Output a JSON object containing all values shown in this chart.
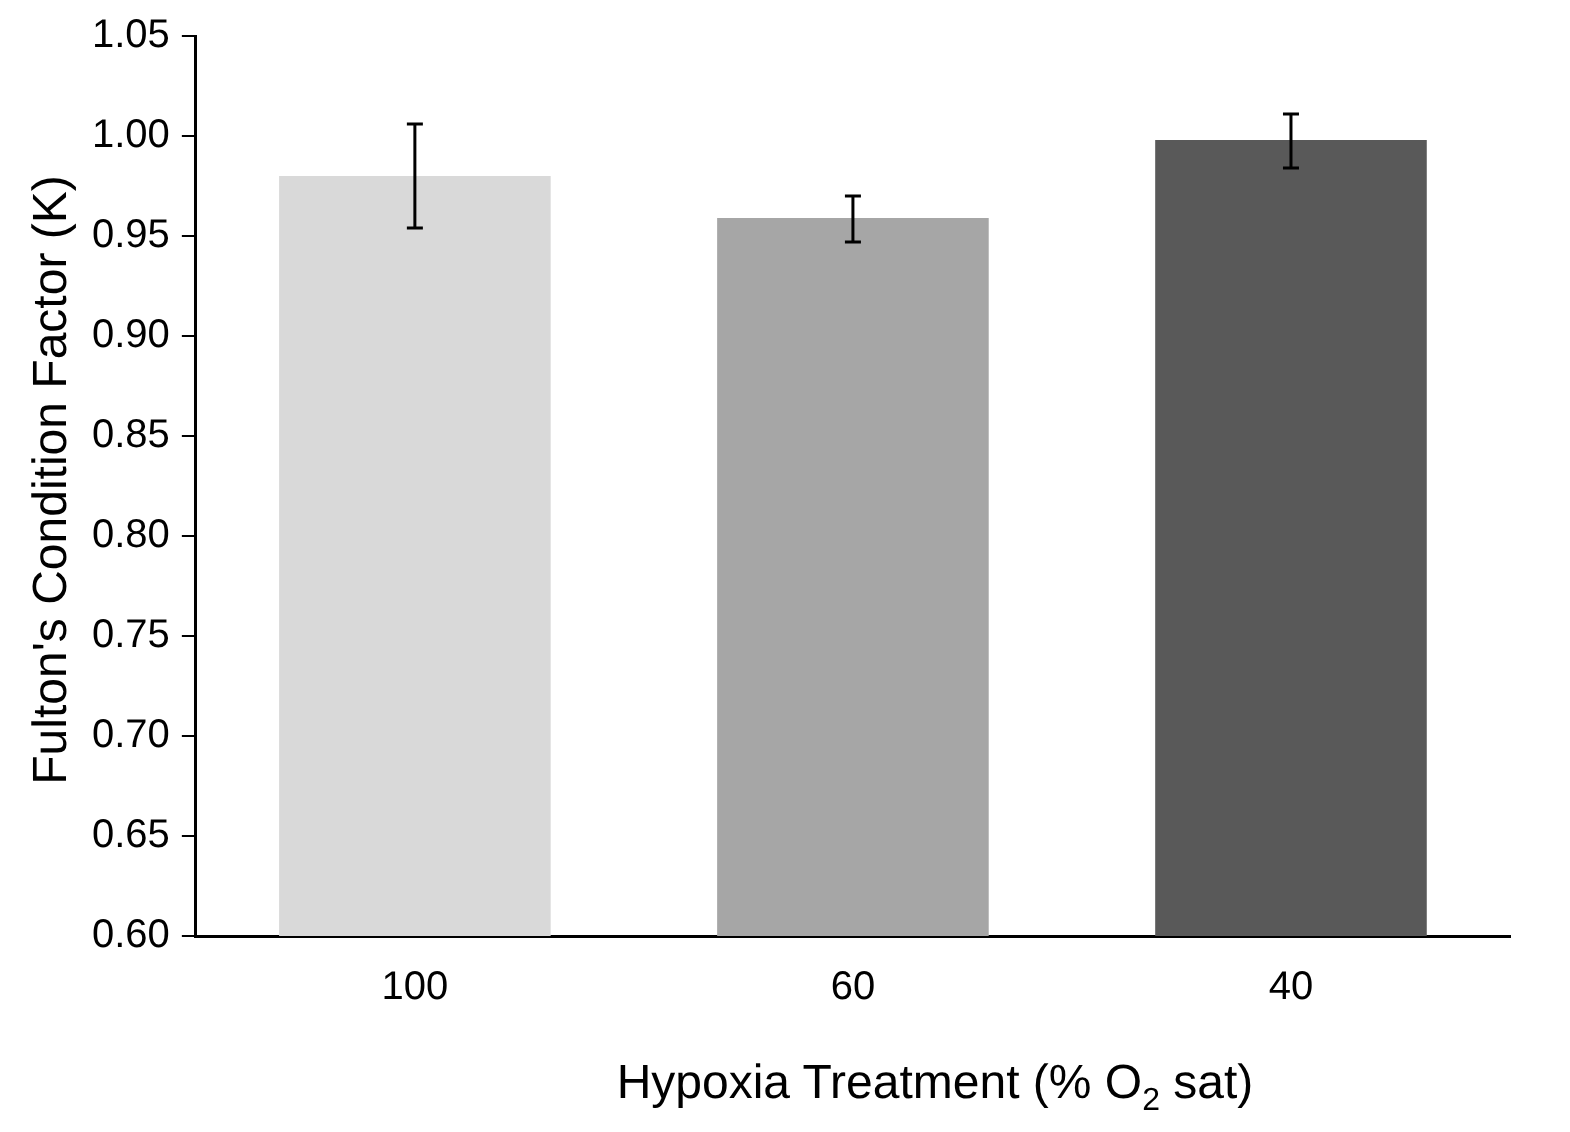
{
  "chart_data": {
    "type": "bar",
    "xlabel": "Hypoxia Treatment (% O$_{2}$ sat)",
    "ylabel": "Fulton's Condition Factor (K)",
    "categories": [
      "100",
      "60",
      "40"
    ],
    "values": [
      0.98,
      0.959,
      0.998
    ],
    "colors": [
      "#d9d9d9",
      "#a6a6a6",
      "#595959"
    ],
    "errors": [
      [
        0.954,
        1.006
      ],
      [
        0.947,
        0.97
      ],
      [
        0.984,
        1.011
      ]
    ],
    "ylim": [
      0.6,
      1.05
    ],
    "yticks": [
      {
        "value": 0.6,
        "label": "0.60"
      },
      {
        "value": 0.65,
        "label": "0.65"
      },
      {
        "value": 0.7,
        "label": "0.70"
      },
      {
        "value": 0.75,
        "label": "0.75"
      },
      {
        "value": 0.8,
        "label": "0.80"
      },
      {
        "value": 0.85,
        "label": "0.85"
      },
      {
        "value": 0.9,
        "label": "0.90"
      },
      {
        "value": 0.95,
        "label": "0.95"
      },
      {
        "value": 1.0,
        "label": "1.00"
      },
      {
        "value": 1.05,
        "label": "1.05"
      }
    ],
    "grid": false,
    "legend": false
  }
}
